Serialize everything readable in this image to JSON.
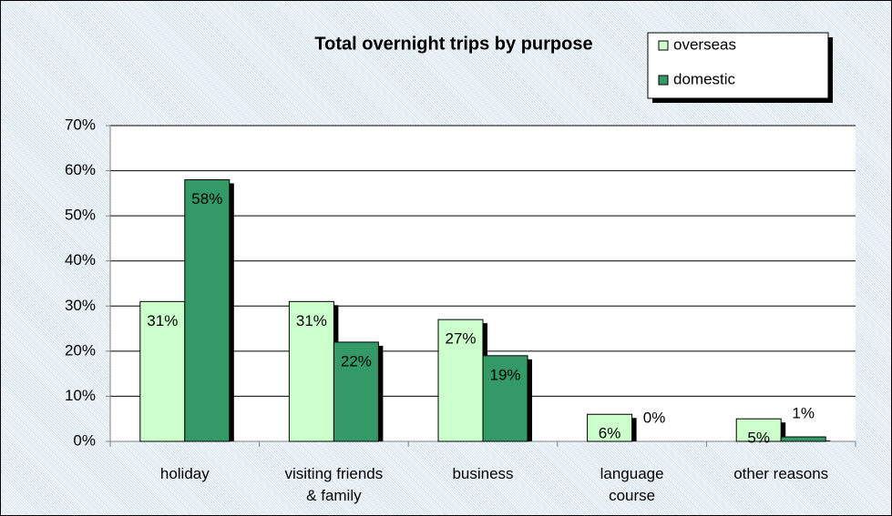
{
  "chart_data": {
    "type": "bar",
    "title": "Total overnight trips by purpose",
    "categories": [
      "holiday",
      "visiting friends\n& family",
      "business",
      "language\ncourse",
      "other reasons"
    ],
    "series": [
      {
        "name": "overseas",
        "color": "#ccffcc",
        "values": [
          31,
          31,
          27,
          6,
          5
        ],
        "value_labels": [
          "31%",
          "31%",
          "27%",
          "6%",
          "5%"
        ]
      },
      {
        "name": "domestic",
        "color": "#339966",
        "values": [
          58,
          22,
          19,
          0,
          1
        ],
        "value_labels": [
          "58%",
          "22%",
          "19%",
          "0%",
          "1%"
        ]
      }
    ],
    "ylim": [
      0,
      70
    ],
    "yticks": [
      {
        "value": 0,
        "label": "0%"
      },
      {
        "value": 10,
        "label": "10%"
      },
      {
        "value": 20,
        "label": "20%"
      },
      {
        "value": 30,
        "label": "30%"
      },
      {
        "value": 40,
        "label": "40%"
      },
      {
        "value": 50,
        "label": "50%"
      },
      {
        "value": 60,
        "label": "60%"
      },
      {
        "value": 70,
        "label": "70%"
      }
    ],
    "grid": true,
    "legend": "top-right"
  }
}
